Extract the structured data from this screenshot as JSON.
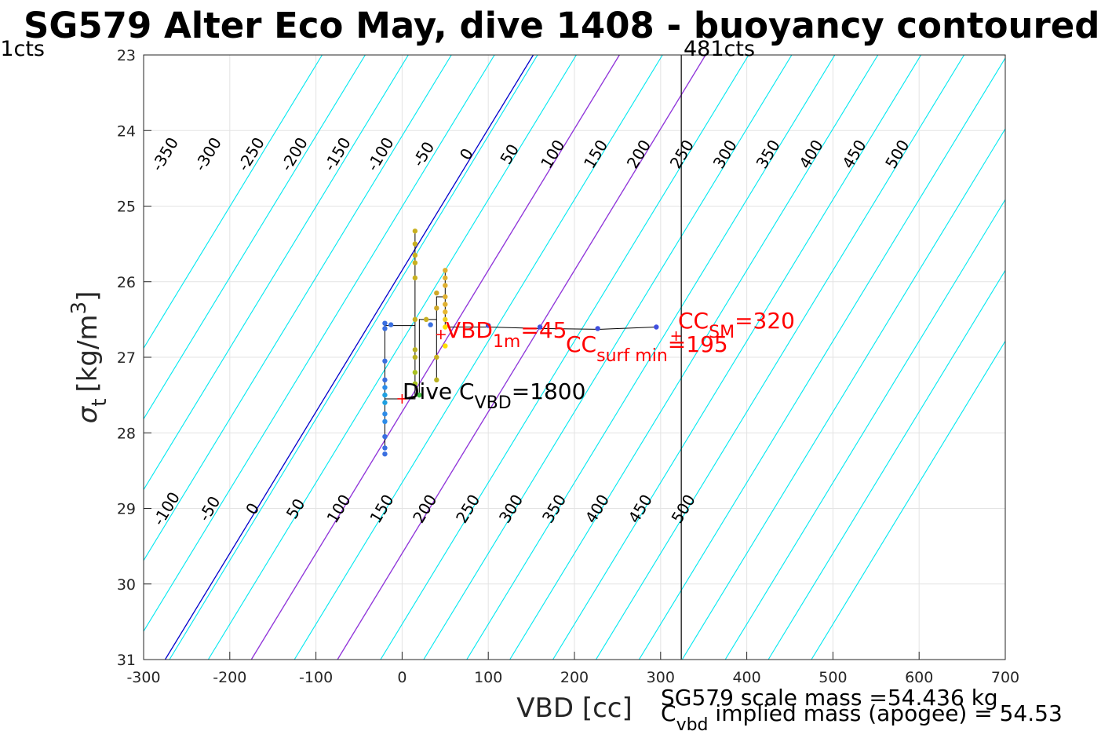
{
  "chart_data": {
    "type": "scatter",
    "title": "SG579 Alter Eco May, dive 1408 - buoyancy contoured",
    "xlabel": "VBD [cc]",
    "ylabel_main": "σ",
    "ylabel_sub": "t",
    "ylabel_unit": "[kg/m",
    "ylabel_sup": "3",
    "ylabel_end": "]",
    "xlim": [
      -300,
      700
    ],
    "ylim": [
      23,
      31
    ],
    "y_reversed": true,
    "grid": true,
    "xticks": [
      -300,
      -200,
      -100,
      0,
      100,
      200,
      300,
      400,
      500,
      600,
      700
    ],
    "yticks": [
      23,
      24,
      25,
      26,
      27,
      28,
      29,
      30,
      31
    ],
    "contour_slope_x_per_sigma": 53.4,
    "contours_top_labels": [
      "-350",
      "-300",
      "-250",
      "-200",
      "-150",
      "-100",
      "-50",
      "0",
      "50",
      "100",
      "150",
      "200",
      "250",
      "300",
      "350",
      "400",
      "450",
      "500"
    ],
    "contours_bottom_labels": [
      "-100",
      "-50",
      "0",
      "50",
      "100",
      "150",
      "200",
      "250",
      "300",
      "350",
      "400",
      "450",
      "500"
    ],
    "contour_intercepts_x_at_sigma31": [
      -520,
      -470,
      -420,
      -370,
      -320,
      -270,
      -225,
      -175,
      -125,
      -75,
      -25,
      25,
      75,
      125,
      175,
      225,
      275,
      325,
      375,
      425,
      475
    ],
    "highlight_contours": [
      {
        "label": "0",
        "intercept": -275,
        "color": "#0000cc"
      },
      {
        "label": "100",
        "intercept": -175,
        "color": "#9b30d9"
      },
      {
        "label": "200",
        "intercept": -75,
        "color": "#9b30d9"
      }
    ],
    "vline_x": 324,
    "vline_label_right": "481cts",
    "vline_label_left": "1cts",
    "series_path": [
      [
        -20,
        27.55
      ],
      [
        -20,
        27.9
      ],
      [
        -20,
        28.2
      ],
      [
        -20,
        27.0
      ],
      [
        -20,
        26.58
      ],
      [
        15,
        26.58
      ],
      [
        15,
        25.35
      ],
      [
        15,
        26.6
      ],
      [
        15,
        27.55
      ],
      [
        -20,
        27.55
      ],
      [
        0,
        27.55
      ],
      [
        20,
        27.5
      ],
      [
        20,
        27.0
      ],
      [
        20,
        26.5
      ],
      [
        40,
        26.5
      ],
      [
        40,
        27.3
      ],
      [
        40,
        26.2
      ],
      [
        50,
        26.2
      ],
      [
        50,
        25.85
      ],
      [
        50,
        26.6
      ],
      [
        100,
        26.6
      ],
      [
        160,
        26.62
      ],
      [
        230,
        26.63
      ],
      [
        295,
        26.6
      ]
    ],
    "series_points": [
      {
        "x": -20,
        "y": 28.28,
        "c": "#3a6fe0"
      },
      {
        "x": -20,
        "y": 28.2,
        "c": "#3a6fe0"
      },
      {
        "x": -20,
        "y": 28.05,
        "c": "#3a6fe0"
      },
      {
        "x": -20,
        "y": 27.85,
        "c": "#2d8ce8"
      },
      {
        "x": -20,
        "y": 27.75,
        "c": "#2d8ce8"
      },
      {
        "x": -20,
        "y": 27.6,
        "c": "#1fa0e0"
      },
      {
        "x": -20,
        "y": 27.5,
        "c": "#1fa0e0"
      },
      {
        "x": -20,
        "y": 27.4,
        "c": "#2d8ce8"
      },
      {
        "x": -20,
        "y": 27.3,
        "c": "#3a6fe0"
      },
      {
        "x": -20,
        "y": 27.05,
        "c": "#3a6fe0"
      },
      {
        "x": -20,
        "y": 26.62,
        "c": "#3a6fe0"
      },
      {
        "x": -20,
        "y": 26.55,
        "c": "#3a6fe0"
      },
      {
        "x": -13,
        "y": 26.57,
        "c": "#3a6fe0"
      },
      {
        "x": 33,
        "y": 26.57,
        "c": "#3a6fe0"
      },
      {
        "x": 15,
        "y": 25.33,
        "c": "#c8b020"
      },
      {
        "x": 15,
        "y": 25.5,
        "c": "#c8b020"
      },
      {
        "x": 15,
        "y": 25.65,
        "c": "#c8b020"
      },
      {
        "x": 15,
        "y": 25.75,
        "c": "#c8b020"
      },
      {
        "x": 15,
        "y": 25.95,
        "c": "#c8b020"
      },
      {
        "x": 15,
        "y": 26.5,
        "c": "#c8b020"
      },
      {
        "x": 15,
        "y": 26.9,
        "c": "#b8b020"
      },
      {
        "x": 15,
        "y": 27.0,
        "c": "#b8b020"
      },
      {
        "x": 15,
        "y": 27.2,
        "c": "#a8c020"
      },
      {
        "x": 15,
        "y": 27.35,
        "c": "#a8c020"
      },
      {
        "x": 20,
        "y": 27.5,
        "c": "#40c040"
      },
      {
        "x": 28,
        "y": 26.5,
        "c": "#c8b020"
      },
      {
        "x": 40,
        "y": 26.15,
        "c": "#d0a828"
      },
      {
        "x": 40,
        "y": 26.35,
        "c": "#d0a828"
      },
      {
        "x": 40,
        "y": 27.0,
        "c": "#c8b020"
      },
      {
        "x": 40,
        "y": 27.3,
        "c": "#b8b020"
      },
      {
        "x": 50,
        "y": 25.85,
        "c": "#e0b030"
      },
      {
        "x": 50,
        "y": 25.95,
        "c": "#e0b030"
      },
      {
        "x": 50,
        "y": 26.05,
        "c": "#e0b030"
      },
      {
        "x": 50,
        "y": 26.2,
        "c": "#e0b030"
      },
      {
        "x": 50,
        "y": 26.3,
        "c": "#e0b030"
      },
      {
        "x": 50,
        "y": 26.4,
        "c": "#e8b830"
      },
      {
        "x": 50,
        "y": 26.5,
        "c": "#f0d020"
      },
      {
        "x": 50,
        "y": 26.6,
        "c": "#ffe000"
      },
      {
        "x": 50,
        "y": 26.85,
        "c": "#ffe000"
      },
      {
        "x": 100,
        "y": 26.58,
        "c": "#4050e0"
      },
      {
        "x": 160,
        "y": 26.6,
        "c": "#4050e0"
      },
      {
        "x": 227,
        "y": 26.62,
        "c": "#4050e0"
      },
      {
        "x": 295,
        "y": 26.6,
        "c": "#4050e0"
      }
    ],
    "markers": [
      {
        "x": 45,
        "y": 26.7,
        "color": "#ff0000"
      },
      {
        "x": 0,
        "y": 27.55,
        "color": "#ff0000"
      },
      {
        "x": 318,
        "y": 26.72,
        "color": "#ff0000"
      }
    ],
    "annotations": {
      "vbd1m_main": "VBD",
      "vbd1m_sub": "1m",
      "vbd1m_val": "=45",
      "ccsm_main": "CC",
      "ccsm_sub": "SM",
      "ccsm_val": "=320",
      "ccsurf_main": "CC",
      "ccsurf_sub": "surf min",
      "ccsurf_val": "=195",
      "dive_main": "Dive C",
      "dive_sub": "VBD",
      "dive_val": "=1800"
    },
    "footer": {
      "line1": "SG579 scale mass =54.436 kg",
      "line2_main": "C",
      "line2_sub": "vbd",
      "line2_rest": " implied mass (apogee) = 54.53"
    }
  }
}
